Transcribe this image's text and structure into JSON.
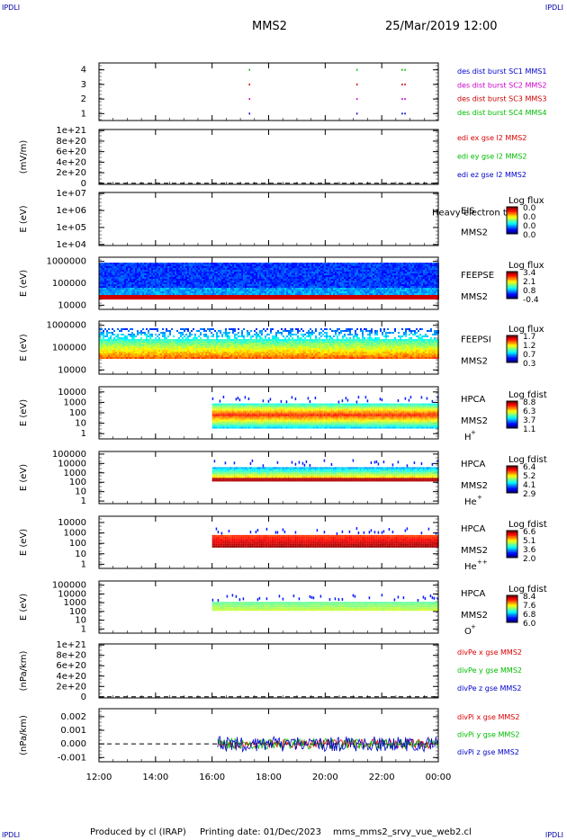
{
  "corners": {
    "tl": "IPDLI",
    "tr": "IPDLI",
    "bl": "IPDLI",
    "br": "IPDLI"
  },
  "header": {
    "spacecraft": "MMS2",
    "datetime": "25/Mar/2019 12:00"
  },
  "footer": {
    "producer": "Produced by cl (IRAP)",
    "printing": "Printing date: 01/Dec/2023",
    "filename": "mms_mms2_srvy_vue_web2.cl"
  },
  "colors": {
    "mms1": "#0000cc",
    "mms2": "#cc00cc",
    "mms3": "#cc0000",
    "mms4": "#00bb00",
    "x": "#dd0000",
    "y": "#00bb00",
    "z": "#0000cc"
  },
  "chart_data": {
    "type": "multi-panel time series / spectrogram",
    "x_axis": {
      "start": "12:00",
      "end": "00:00",
      "tick_labels": [
        "12:00",
        "14:00",
        "16:00",
        "18:00",
        "20:00",
        "22:00",
        "00:00"
      ]
    },
    "panels": [
      {
        "id": "burst",
        "ylabel": "",
        "yticks": [
          "4",
          "3",
          "2",
          "1"
        ],
        "legend": [
          {
            "text": "des dist burst SC1 MMS1",
            "color": "mms1"
          },
          {
            "text": "des dist burst SC2 MMS2",
            "color": "mms2"
          },
          {
            "text": "des dist burst SC3 MMS3",
            "color": "mms3"
          },
          {
            "text": "des dist burst SC4 MMS4",
            "color": "mms4"
          }
        ],
        "burst_times": [
          17.3,
          21.1,
          22.7,
          22.8
        ]
      },
      {
        "id": "edi",
        "ylabel": "(mV/m)",
        "yticks": [
          "1e+21",
          "8e+20",
          "6e+20",
          "4e+20",
          "2e+20",
          "0"
        ],
        "legend": [
          {
            "text": "edi ex gse l2 MMS2",
            "color": "x"
          },
          {
            "text": "edi ey gse l2 MMS2",
            "color": "y"
          },
          {
            "text": "edi ez gse l2 MMS2",
            "color": "z"
          }
        ]
      },
      {
        "id": "eis",
        "ylabel": "E (eV)",
        "yticks": [
          "1e+07",
          "1e+06",
          "1e+05",
          "1e+04"
        ],
        "name": [
          "EIS",
          "MMS2"
        ],
        "overlay": "Heavy electron to",
        "cbar_title": "Log flux",
        "cbar_ticks": [
          "0.0",
          "0.0",
          "0.0",
          "0.0"
        ]
      },
      {
        "id": "feepse",
        "ylabel": "E (eV)",
        "yticks": [
          "1000000",
          "100000",
          "10000"
        ],
        "name": [
          "FEEPSE",
          "MMS2"
        ],
        "cbar_title": "Log flux",
        "cbar_ticks": [
          "3.4",
          "2.1",
          "0.8",
          "-0.4"
        ]
      },
      {
        "id": "feepsi",
        "ylabel": "E (eV)",
        "yticks": [
          "1000000",
          "100000",
          "10000"
        ],
        "name": [
          "FEEPSI",
          "MMS2"
        ],
        "cbar_title": "Log flux",
        "cbar_ticks": [
          "1.7",
          "1.2",
          "0.7",
          "0.3"
        ]
      },
      {
        "id": "hpca_h",
        "ylabel": "E (eV)",
        "yticks": [
          "10000",
          "1000",
          "100",
          "10",
          "1"
        ],
        "name": [
          "HPCA",
          "MMS2"
        ],
        "species": "H",
        "charge": "+",
        "cbar_title": "Log fdist",
        "cbar_ticks": [
          "8.8",
          "6.3",
          "3.7",
          "1.1"
        ],
        "data_start": 16.0
      },
      {
        "id": "hpca_he",
        "ylabel": "E (eV)",
        "yticks": [
          "100000",
          "10000",
          "1000",
          "100",
          "10",
          "1"
        ],
        "name": [
          "HPCA",
          "MMS2"
        ],
        "species": "He",
        "charge": "+",
        "cbar_title": "Log fdist",
        "cbar_ticks": [
          "6.4",
          "5.2",
          "4.1",
          "2.9"
        ],
        "data_start": 16.0
      },
      {
        "id": "hpca_hepp",
        "ylabel": "E (eV)",
        "yticks": [
          "10000",
          "1000",
          "100",
          "10",
          "1"
        ],
        "name": [
          "HPCA",
          "MMS2"
        ],
        "species": "He",
        "charge": "++",
        "cbar_title": "Log fdist",
        "cbar_ticks": [
          "6.6",
          "5.1",
          "3.6",
          "2.0"
        ],
        "data_start": 16.0
      },
      {
        "id": "hpca_o",
        "ylabel": "E (eV)",
        "yticks": [
          "100000",
          "10000",
          "1000",
          "100",
          "10",
          "1"
        ],
        "name": [
          "HPCA",
          "MMS2"
        ],
        "species": "O",
        "charge": "+",
        "cbar_title": "Log fdist",
        "cbar_ticks": [
          "8.4",
          "7.6",
          "6.8",
          "6.0"
        ],
        "data_start": 16.0
      },
      {
        "id": "divpe",
        "ylabel": "(nPa/km)",
        "yticks": [
          "1e+21",
          "8e+20",
          "6e+20",
          "4e+20",
          "2e+20",
          "0"
        ],
        "legend": [
          {
            "text": "divPe x gse MMS2",
            "color": "x"
          },
          {
            "text": "divPe y gse MMS2",
            "color": "y"
          },
          {
            "text": "divPe z gse MMS2",
            "color": "z"
          }
        ]
      },
      {
        "id": "divpi",
        "ylabel": "(nPa/km)",
        "yticks": [
          "0.002",
          "0.001",
          "0.000",
          "-0.001"
        ],
        "ylim": [
          -0.0015,
          0.0025
        ],
        "legend": [
          {
            "text": "divPi x gse MMS2",
            "color": "x"
          },
          {
            "text": "divPi y gse MMS2",
            "color": "y"
          },
          {
            "text": "divPi z gse MMS2",
            "color": "z"
          }
        ],
        "data_start": 16.2
      }
    ]
  }
}
